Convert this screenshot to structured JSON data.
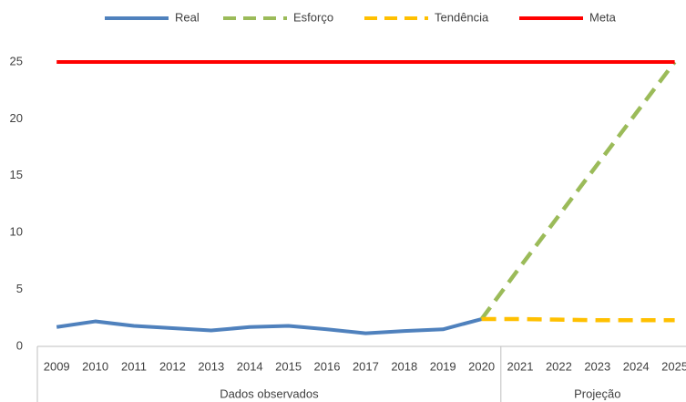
{
  "chart_data": {
    "type": "line",
    "categories": [
      "2009",
      "2010",
      "2011",
      "2012",
      "2013",
      "2014",
      "2015",
      "2016",
      "2017",
      "2018",
      "2019",
      "2020",
      "2021",
      "2022",
      "2023",
      "2024",
      "2025"
    ],
    "groups": [
      {
        "label": "Dados observados",
        "span": 12
      },
      {
        "label": "Projeção",
        "span": 5
      }
    ],
    "series": [
      {
        "name": "Real",
        "color": "#4f81bd",
        "dash": false,
        "values": [
          1.7,
          2.2,
          1.8,
          1.6,
          1.4,
          1.7,
          1.8,
          1.5,
          1.15,
          1.35,
          1.5,
          2.4,
          null,
          null,
          null,
          null,
          null
        ]
      },
      {
        "name": "Esforço",
        "color": "#9bbb59",
        "dash": true,
        "values": [
          null,
          null,
          null,
          null,
          null,
          null,
          null,
          null,
          null,
          null,
          null,
          2.4,
          7,
          11.5,
          16,
          20.5,
          25
        ]
      },
      {
        "name": "Tendência",
        "color": "#ffc000",
        "dash": true,
        "values": [
          null,
          null,
          null,
          null,
          null,
          null,
          null,
          null,
          null,
          null,
          null,
          2.4,
          2.4,
          2.35,
          2.3,
          2.3,
          2.3
        ]
      },
      {
        "name": "Meta",
        "color": "#ff0000",
        "dash": false,
        "values": [
          25,
          25,
          25,
          25,
          25,
          25,
          25,
          25,
          25,
          25,
          25,
          25,
          25,
          25,
          25,
          25,
          25
        ]
      }
    ],
    "ylim": [
      0,
      25
    ],
    "yticks": [
      0,
      5,
      10,
      15,
      20,
      25
    ],
    "grid": false,
    "legend": "top"
  }
}
